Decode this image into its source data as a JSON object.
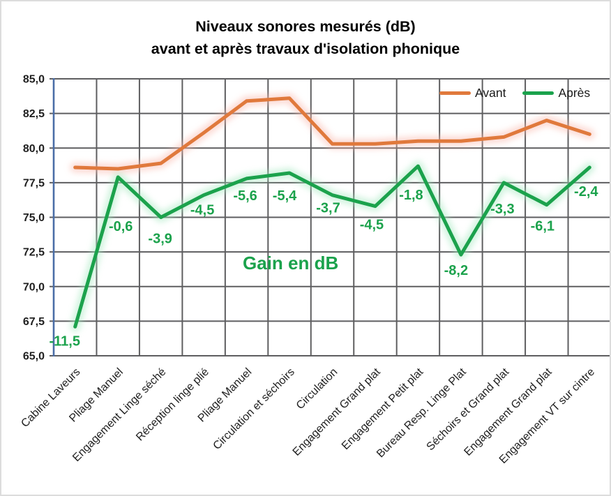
{
  "title": {
    "line1": "Niveaux sonores mesurés (dB)",
    "line2": "avant et après travaux d'isolation phonique"
  },
  "legend": {
    "avant": "Avant",
    "apres": "Après"
  },
  "annotation": {
    "text": "Gain en dB"
  },
  "colors": {
    "avant": "#E0793C",
    "apres": "#1BA24C",
    "glow_avant": "#F9B9AE",
    "glow_apres": "#A5E8C0",
    "grid": "#5E5E60",
    "axis_left": "#4A6DA7",
    "tick_text": "#1f1f1f",
    "gain_text": "#1BA24C"
  },
  "chart_data": {
    "type": "line",
    "title": "Niveaux sonores mesurés (dB) avant et après travaux d'isolation phonique",
    "categories": [
      "Cabine Laveurs",
      "Pliage Manuel",
      "Engagement Linge séché",
      "Réception linge plié",
      "Pliage Manuel",
      "Circulation et séchoirs",
      "Circulation",
      "Engagement Grand plat",
      "Engagement Petit plat",
      "Bureau Resp. Linge Plat",
      "Séchoirs et Grand plat",
      "Engagement Grand plat",
      "Engagement VT sur cintre"
    ],
    "series": [
      {
        "name": "Avant",
        "values": [
          78.6,
          78.5,
          78.9,
          81.1,
          83.4,
          83.6,
          80.3,
          80.3,
          80.5,
          80.5,
          80.8,
          82.0,
          81.0
        ]
      },
      {
        "name": "Après",
        "values": [
          67.1,
          77.9,
          75.0,
          76.6,
          77.8,
          78.2,
          76.6,
          75.8,
          78.7,
          72.3,
          77.5,
          75.9,
          78.6
        ]
      }
    ],
    "gain_labels": [
      "-11,5",
      "-0,6",
      "-3,9",
      "-4,5",
      "-5,6",
      "-5,4",
      "-3,7",
      "-4,5",
      "-1,8",
      "-8,2",
      "-3,3",
      "-6,1",
      "-2,4"
    ],
    "annotation": "Gain en dB",
    "xlabel": "",
    "ylabel": "",
    "ylim": [
      65.0,
      85.0
    ],
    "y_tick_step": 2.5,
    "y_ticks": [
      "85,0",
      "82,5",
      "80,0",
      "77,5",
      "75,0",
      "72,5",
      "70,0",
      "67,5",
      "65,0"
    ],
    "grid": true,
    "legend_position": "top-right-inside"
  }
}
